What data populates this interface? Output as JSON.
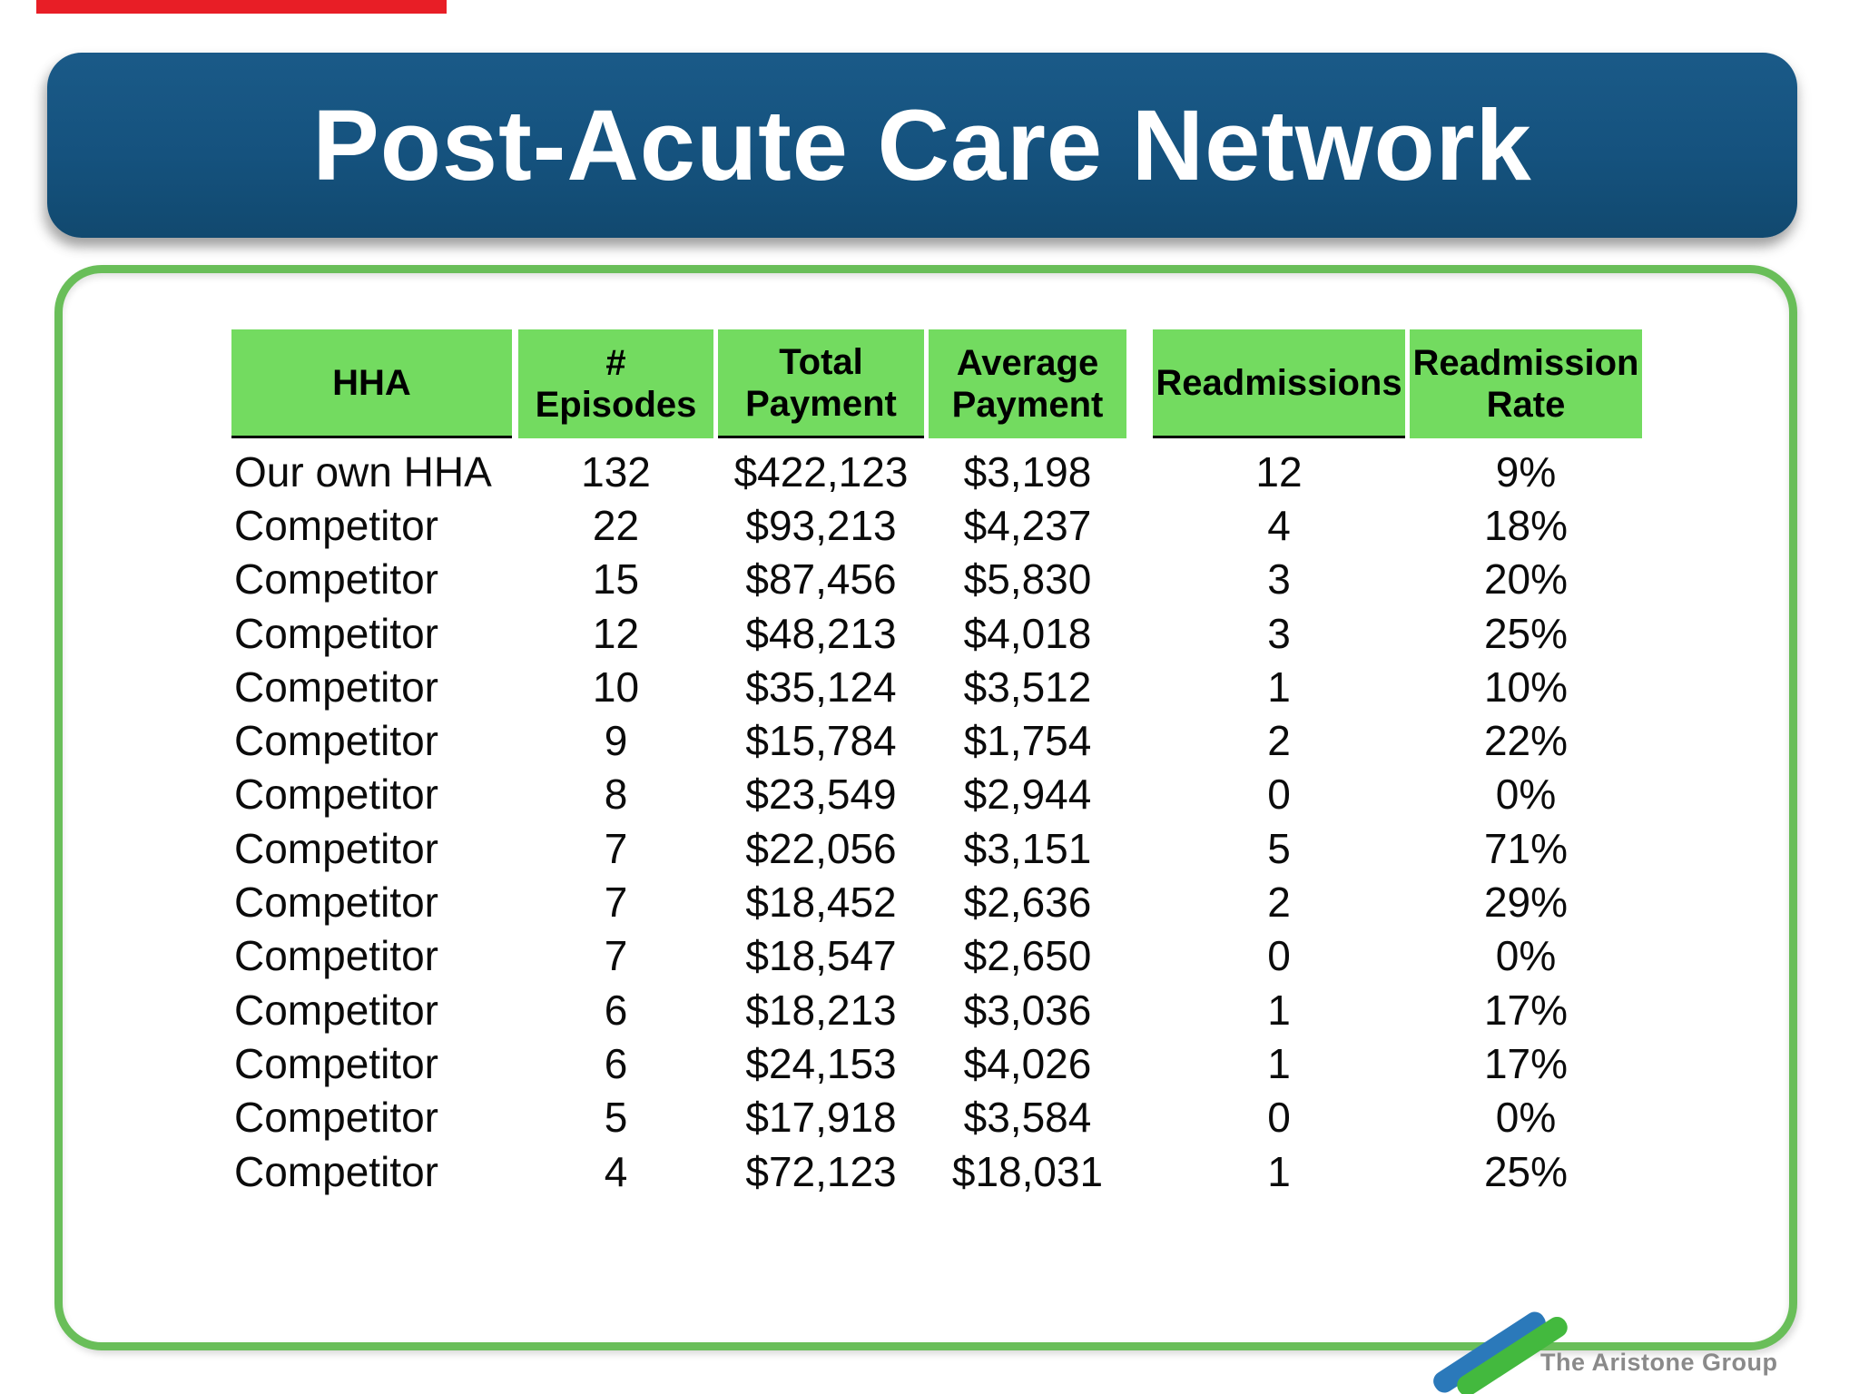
{
  "slide": {
    "title": "Post-Acute Care Network",
    "title_bg_color": "#15527e",
    "title_text_color": "#ffffff",
    "top_bar_color": "#e81e26",
    "panel_border_color": "#69be59",
    "background_color": "#ffffff"
  },
  "table": {
    "header_bg_color": "#73db60",
    "columns": [
      {
        "key": "hha",
        "label": "HHA"
      },
      {
        "key": "episodes",
        "label": "# Episodes"
      },
      {
        "key": "total_payment",
        "label": "Total Payment"
      },
      {
        "key": "average_payment",
        "label": "Average Payment"
      },
      {
        "key": "readmissions",
        "label": "Readmissions"
      },
      {
        "key": "readmission_rate",
        "label": "Readmission Rate"
      }
    ],
    "rows": [
      {
        "hha": "Our own HHA",
        "episodes": "132",
        "total_payment": "$422,123",
        "average_payment": "$3,198",
        "readmissions": "12",
        "readmission_rate": "9%"
      },
      {
        "hha": "Competitor",
        "episodes": "22",
        "total_payment": "$93,213",
        "average_payment": "$4,237",
        "readmissions": "4",
        "readmission_rate": "18%"
      },
      {
        "hha": "Competitor",
        "episodes": "15",
        "total_payment": "$87,456",
        "average_payment": "$5,830",
        "readmissions": "3",
        "readmission_rate": "20%"
      },
      {
        "hha": "Competitor",
        "episodes": "12",
        "total_payment": "$48,213",
        "average_payment": "$4,018",
        "readmissions": "3",
        "readmission_rate": "25%"
      },
      {
        "hha": "Competitor",
        "episodes": "10",
        "total_payment": "$35,124",
        "average_payment": "$3,512",
        "readmissions": "1",
        "readmission_rate": "10%"
      },
      {
        "hha": "Competitor",
        "episodes": "9",
        "total_payment": "$15,784",
        "average_payment": "$1,754",
        "readmissions": "2",
        "readmission_rate": "22%"
      },
      {
        "hha": "Competitor",
        "episodes": "8",
        "total_payment": "$23,549",
        "average_payment": "$2,944",
        "readmissions": "0",
        "readmission_rate": "0%"
      },
      {
        "hha": "Competitor",
        "episodes": "7",
        "total_payment": "$22,056",
        "average_payment": "$3,151",
        "readmissions": "5",
        "readmission_rate": "71%"
      },
      {
        "hha": "Competitor",
        "episodes": "7",
        "total_payment": "$18,452",
        "average_payment": "$2,636",
        "readmissions": "2",
        "readmission_rate": "29%"
      },
      {
        "hha": "Competitor",
        "episodes": "7",
        "total_payment": "$18,547",
        "average_payment": "$2,650",
        "readmissions": "0",
        "readmission_rate": "0%"
      },
      {
        "hha": "Competitor",
        "episodes": "6",
        "total_payment": "$18,213",
        "average_payment": "$3,036",
        "readmissions": "1",
        "readmission_rate": "17%"
      },
      {
        "hha": "Competitor",
        "episodes": "6",
        "total_payment": "$24,153",
        "average_payment": "$4,026",
        "readmissions": "1",
        "readmission_rate": "17%"
      },
      {
        "hha": "Competitor",
        "episodes": "5",
        "total_payment": "$17,918",
        "average_payment": "$3,584",
        "readmissions": "0",
        "readmission_rate": "0%"
      },
      {
        "hha": "Competitor",
        "episodes": "4",
        "total_payment": "$72,123",
        "average_payment": "$18,031",
        "readmissions": "1",
        "readmission_rate": "25%"
      }
    ]
  },
  "logo": {
    "text": "The Aristone Group",
    "text_color": "#8a8a8a",
    "stroke_blue_color": "#2b79ba",
    "stroke_green_color": "#43b93e"
  }
}
